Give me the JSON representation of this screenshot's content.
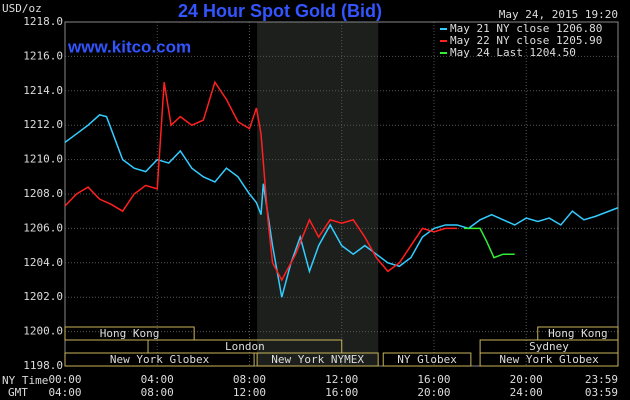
{
  "chart_data": {
    "type": "line",
    "title": "24 Hour Spot Gold (Bid)",
    "subtitle": "www.kitco.com",
    "unit_label": "USD/oz",
    "timestamp": "May 24, 2015 19:20",
    "x_row_labels": [
      "NY Time",
      "GMT"
    ],
    "xlim": [
      0,
      23.98
    ],
    "ylim": [
      1198,
      1218
    ],
    "yticks": [
      {
        "value": 1198,
        "label": "1198.0"
      },
      {
        "value": 1200,
        "label": "1200.0"
      },
      {
        "value": 1202,
        "label": "1202.0"
      },
      {
        "value": 1204,
        "label": "1204.0"
      },
      {
        "value": 1206,
        "label": "1206.0"
      },
      {
        "value": 1208,
        "label": "1208.0"
      },
      {
        "value": 1210,
        "label": "1210.0"
      },
      {
        "value": 1212,
        "label": "1212.0"
      },
      {
        "value": 1214,
        "label": "1214.0"
      },
      {
        "value": 1216,
        "label": "1216.0"
      },
      {
        "value": 1218,
        "label": "1218.0"
      }
    ],
    "xticks": [
      {
        "value": 0,
        "label": "00:00"
      },
      {
        "value": 4,
        "label": "04:00"
      },
      {
        "value": 8,
        "label": "08:00"
      },
      {
        "value": 12,
        "label": "12:00"
      },
      {
        "value": 16,
        "label": "16:00"
      },
      {
        "value": 20,
        "label": "20:00"
      },
      {
        "value": 23.98,
        "label": "23:59"
      }
    ],
    "gmt_ticks": [
      {
        "value": 0,
        "label": "04:00"
      },
      {
        "value": 4,
        "label": "08:00"
      },
      {
        "value": 8,
        "label": "12:00"
      },
      {
        "value": 12,
        "label": "16:00"
      },
      {
        "value": 16,
        "label": "20:00"
      },
      {
        "value": 20,
        "label": "24:00"
      },
      {
        "value": 23.98,
        "label": "03:59"
      }
    ],
    "grid": true,
    "highlight": [
      8.33,
      13.58
    ],
    "session_rows": [
      [
        {
          "name": "Hong Kong",
          "start": 0,
          "end": 5.6
        },
        {
          "name": "Hong Kong",
          "start": 20.5,
          "end": 23.98
        }
      ],
      [
        {
          "name": "London",
          "start": 3.6,
          "end": 12
        },
        {
          "name": "Sydney",
          "start": 18,
          "end": 23.98
        }
      ],
      [
        {
          "name": "New York Globex",
          "start": 0,
          "end": 8.2
        },
        {
          "name": "New York NYMEX",
          "start": 8.33,
          "end": 13.58
        },
        {
          "name": "NY Globex",
          "start": 13.8,
          "end": 17.6
        },
        {
          "name": "New York Globex",
          "start": 18,
          "end": 23.98
        }
      ]
    ],
    "series": [
      {
        "name": "May 21 NY close 1206.80",
        "color": "#33ccff",
        "x": [
          0,
          0.5,
          1,
          1.5,
          1.8,
          2.5,
          3,
          3.5,
          4,
          4.5,
          5,
          5.5,
          6,
          6.5,
          7,
          7.5,
          8,
          8.3,
          8.5,
          8.6,
          9,
          9.4,
          9.8,
          10.2,
          10.6,
          11,
          11.5,
          12,
          12.5,
          13,
          13.5,
          14,
          14.5,
          15,
          15.5,
          16,
          16.5,
          17,
          17.5,
          18,
          18.5,
          19,
          19.5,
          20,
          20.5,
          21,
          21.5,
          22,
          22.5,
          23,
          23.98
        ],
        "values": [
          1211,
          1211.5,
          1212,
          1212.6,
          1212.5,
          1210,
          1209.5,
          1209.3,
          1210,
          1209.8,
          1210.5,
          1209.5,
          1209,
          1208.7,
          1209.5,
          1209,
          1208,
          1207.5,
          1206.8,
          1208.6,
          1205,
          1202,
          1204,
          1205.5,
          1203.5,
          1205,
          1206.2,
          1205,
          1204.5,
          1205,
          1204.5,
          1204,
          1203.8,
          1204.3,
          1205.5,
          1206,
          1206.2,
          1206.2,
          1206,
          1206.5,
          1206.8,
          1206.5,
          1206.2,
          1206.6,
          1206.4,
          1206.6,
          1206.2,
          1207,
          1206.5,
          1206.7,
          1207.2
        ]
      },
      {
        "name": "May 22 NY close 1205.90",
        "color": "#ff2020",
        "x": [
          0,
          0.5,
          1,
          1.5,
          2,
          2.5,
          3,
          3.5,
          4,
          4.3,
          4.6,
          5,
          5.5,
          6,
          6.5,
          7,
          7.5,
          8,
          8.3,
          8.5,
          8.8,
          9,
          9.4,
          10,
          10.6,
          11,
          11.5,
          12,
          12.5,
          13,
          13.5,
          14,
          14.5,
          15,
          15.5,
          16,
          16.5,
          17
        ],
        "values": [
          1207.3,
          1208,
          1208.4,
          1207.7,
          1207.4,
          1207,
          1208,
          1208.5,
          1208.3,
          1214.5,
          1212,
          1212.5,
          1212,
          1212.3,
          1214.5,
          1213.5,
          1212.2,
          1211.8,
          1213,
          1211.5,
          1206.5,
          1204,
          1203,
          1204.5,
          1206.5,
          1205.5,
          1206.5,
          1206.3,
          1206.5,
          1205.5,
          1204.3,
          1203.5,
          1204,
          1205,
          1206,
          1205.8,
          1206,
          1206
        ]
      },
      {
        "name": "May 24 Last 1204.50",
        "color": "#33ee33",
        "x": [
          17.3,
          18,
          18.3,
          18.6,
          19,
          19.5
        ],
        "values": [
          1206,
          1206,
          1205.2,
          1204.3,
          1204.5,
          1204.5
        ]
      }
    ]
  }
}
